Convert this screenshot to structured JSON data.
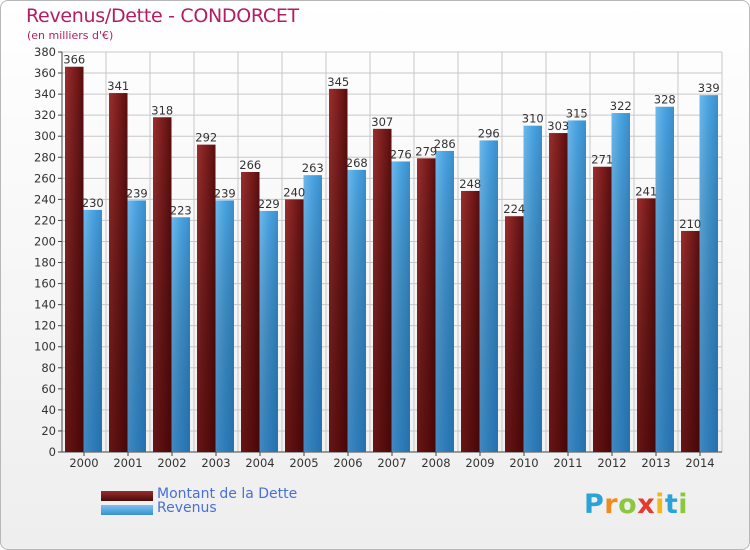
{
  "title": "Revenus/Dette - CONDORCET",
  "subtitle": "(en milliers d'€)",
  "logo": {
    "letters": [
      "P",
      "r",
      "o",
      "x",
      "i",
      "t",
      "i"
    ],
    "colors": [
      "#2aa4d6",
      "#f08a1c",
      "#8dc63f",
      "#e53b2c",
      "#f0b81c",
      "#2aa4d6",
      "#8dc63f"
    ]
  },
  "chart_data": {
    "type": "bar",
    "categories": [
      "2000",
      "2001",
      "2002",
      "2003",
      "2004",
      "2005",
      "2006",
      "2007",
      "2008",
      "2009",
      "2010",
      "2011",
      "2012",
      "2013",
      "2014"
    ],
    "series": [
      {
        "name": "Montant de la Dette",
        "color": "#7a1c1c",
        "values": [
          366,
          341,
          318,
          292,
          266,
          240,
          345,
          307,
          279,
          248,
          224,
          303,
          271,
          241,
          210
        ]
      },
      {
        "name": "Revenus",
        "color": "#4aa3e0",
        "values": [
          230,
          239,
          223,
          239,
          229,
          263,
          268,
          276,
          286,
          296,
          310,
          315,
          322,
          328,
          339
        ]
      }
    ],
    "ylim": [
      0,
      380
    ],
    "yticks": [
      0,
      20,
      40,
      60,
      80,
      100,
      120,
      140,
      160,
      180,
      200,
      220,
      240,
      260,
      280,
      300,
      320,
      340,
      360,
      380
    ],
    "grid": true,
    "legend_position": "bottom-left"
  }
}
